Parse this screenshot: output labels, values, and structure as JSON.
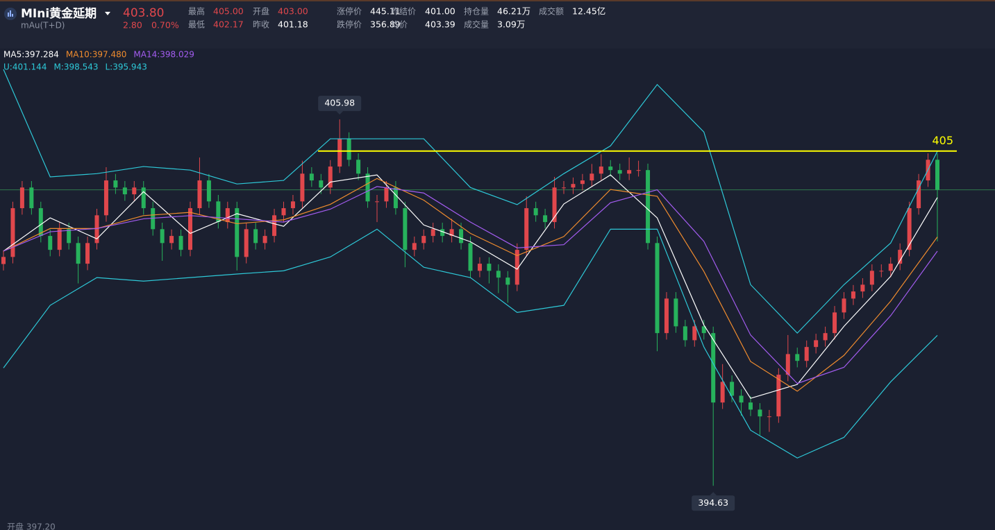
{
  "header": {
    "title": "MIni黄金延期",
    "code": "mAu(T+D)",
    "price": "403.80",
    "change": "2.80",
    "change_pct": "0.70%",
    "stats_row1": [
      {
        "label": "最高",
        "value": "405.00"
      },
      {
        "label": "开盘",
        "value": "403.00"
      },
      {
        "label": "涨停价",
        "value": "445.11"
      },
      {
        "label": "昨结价",
        "value": "401.00"
      },
      {
        "label": "持仓量",
        "value": "46.21万"
      },
      {
        "label": "成交额",
        "value": "12.45亿"
      }
    ],
    "stats_row2": [
      {
        "label": "最低",
        "value": "402.17"
      },
      {
        "label": "昨收",
        "value": "401.18"
      },
      {
        "label": "跌停价",
        "value": "356.89"
      },
      {
        "label": "均价",
        "value": "403.39"
      },
      {
        "label": "成交量",
        "value": "3.09万"
      }
    ]
  },
  "chart_data": {
    "type": "candlestick",
    "up_color": "#e0474c",
    "down_color": "#27b25c",
    "ylim": [
      393.26,
      408.39
    ],
    "legend_rows": [
      [
        {
          "text": "MA5:397.284",
          "color": "#ffffff"
        },
        {
          "text": "MA10:397.480",
          "color": "#f08c2e"
        },
        {
          "text": "MA14:398.029",
          "color": "#a35cf0"
        }
      ],
      [
        {
          "text": "U:401.144",
          "color": "#2ec9d8"
        },
        {
          "text": "M:398.543",
          "color": "#2ec9d8"
        },
        {
          "text": "L:395.943",
          "color": "#2ec9d8"
        }
      ]
    ],
    "open": [
      401.5,
      401.72,
      403.23,
      403.87,
      403.23,
      402.37,
      401.94,
      402.58,
      402.15,
      401.51,
      402.15,
      403.01,
      404.09,
      403.87,
      403.66,
      403.87,
      403.23,
      402.58,
      402.15,
      402.37,
      401.94,
      403.23,
      404.09,
      403.44,
      402.8,
      403.23,
      401.72,
      402.58,
      402.15,
      402.37,
      403.01,
      403.23,
      403.44,
      404.3,
      404.09,
      403.87,
      404.52,
      405.38,
      404.73,
      404.3,
      403.44,
      403.44,
      403.87,
      403.23,
      401.94,
      402.15,
      402.37,
      402.58,
      402.37,
      402.58,
      402.15,
      401.29,
      401.51,
      401.29,
      401.08,
      400.86,
      401.94,
      403.23,
      403.01,
      402.8,
      403.87,
      403.87,
      403.98,
      404.09,
      404.3,
      404.52,
      404.41,
      404.3,
      404.41,
      404.41,
      402.15,
      399.36,
      400.43,
      399.57,
      399.14,
      399.57,
      399.36,
      397.21,
      397.85,
      397.42,
      397.21,
      396.99,
      396.78,
      396.78,
      398.07,
      398.71,
      398.5,
      398.93,
      399.14,
      399.36,
      400.0,
      400.43,
      400.65,
      400.86,
      401.29,
      401.29,
      401.51,
      401.94,
      403.23,
      404.09,
      404.73
    ],
    "high": [
      401.92,
      403.43,
      404.07,
      404.07,
      403.43,
      402.57,
      402.78,
      402.78,
      402.35,
      402.35,
      403.21,
      404.5,
      404.29,
      404.07,
      404.07,
      404.07,
      403.43,
      402.78,
      402.57,
      402.57,
      403.43,
      404.8,
      404.29,
      403.64,
      403.43,
      403.43,
      402.78,
      402.78,
      402.57,
      403.21,
      403.43,
      403.64,
      404.7,
      404.5,
      404.29,
      404.72,
      405.98,
      405.58,
      404.93,
      404.5,
      403.64,
      404.07,
      404.07,
      403.43,
      402.35,
      402.57,
      402.78,
      402.78,
      402.9,
      402.78,
      402.35,
      401.71,
      401.71,
      401.49,
      401.28,
      402.14,
      403.6,
      403.43,
      403.21,
      404.2,
      404.07,
      404.18,
      404.29,
      404.6,
      404.9,
      404.72,
      404.61,
      404.8,
      404.7,
      404.61,
      402.35,
      400.63,
      400.63,
      399.77,
      399.77,
      399.77,
      399.56,
      398.4,
      398.05,
      397.62,
      397.41,
      397.19,
      396.98,
      398.27,
      399.3,
      398.91,
      399.13,
      399.34,
      399.56,
      400.2,
      400.63,
      400.85,
      401.06,
      401.49,
      401.49,
      401.71,
      402.14,
      403.43,
      404.29,
      404.93,
      404.93
    ],
    "low": [
      401.3,
      401.52,
      403.03,
      403.03,
      402.17,
      401.74,
      401.74,
      401.95,
      400.9,
      401.31,
      401.95,
      402.81,
      403.67,
      403.46,
      403.46,
      403.03,
      402.38,
      401.6,
      401.95,
      401.74,
      401.74,
      403.03,
      403.24,
      402.6,
      402.6,
      401.3,
      401.52,
      401.95,
      401.95,
      402.17,
      402.81,
      403.03,
      403.24,
      403.89,
      403.67,
      403.67,
      404.32,
      404.53,
      404.1,
      403.24,
      402.8,
      403.24,
      403.03,
      401.4,
      401.74,
      401.95,
      402.17,
      402.17,
      402.17,
      401.95,
      401.09,
      401.09,
      400.9,
      400.6,
      400.3,
      400.66,
      401.74,
      402.81,
      402.6,
      402.6,
      403.67,
      403.67,
      403.78,
      403.89,
      404.1,
      404.21,
      404.1,
      404.1,
      404.21,
      401.95,
      398.8,
      399.16,
      399.37,
      398.94,
      398.94,
      399.16,
      394.63,
      397.01,
      397.22,
      396.8,
      396.79,
      396.2,
      396.3,
      396.58,
      397.87,
      398.3,
      398.3,
      398.73,
      398.94,
      399.16,
      399.8,
      400.23,
      400.45,
      400.66,
      401.09,
      401.09,
      401.31,
      401.74,
      403.03,
      403.89,
      402.2
    ],
    "close": [
      401.72,
      403.23,
      403.87,
      403.23,
      402.37,
      401.94,
      402.58,
      402.15,
      401.51,
      402.15,
      403.01,
      404.09,
      403.87,
      403.66,
      403.87,
      403.23,
      402.58,
      402.15,
      402.37,
      401.94,
      403.23,
      404.09,
      403.44,
      402.8,
      403.23,
      401.72,
      402.58,
      402.15,
      402.37,
      403.01,
      403.23,
      403.44,
      404.3,
      404.09,
      403.87,
      404.52,
      405.38,
      404.73,
      404.3,
      403.44,
      403.44,
      403.87,
      403.23,
      401.94,
      402.15,
      402.37,
      402.58,
      402.37,
      402.58,
      402.15,
      401.29,
      401.51,
      401.29,
      401.08,
      400.86,
      401.94,
      403.23,
      403.01,
      402.8,
      403.87,
      403.87,
      403.98,
      404.09,
      404.3,
      404.52,
      404.41,
      404.3,
      404.41,
      404.41,
      402.15,
      399.36,
      400.43,
      399.57,
      399.14,
      399.57,
      399.36,
      397.21,
      397.85,
      397.42,
      397.21,
      396.99,
      396.78,
      396.78,
      398.07,
      398.71,
      398.5,
      398.93,
      399.14,
      399.36,
      400.0,
      400.43,
      400.65,
      400.86,
      401.29,
      401.29,
      401.51,
      401.94,
      403.23,
      404.09,
      404.73,
      403.8
    ],
    "lines": [
      {
        "name": "MA5",
        "color": "#ffffff",
        "x": [
          0,
          5,
          10,
          15,
          20,
          25,
          30,
          35,
          40,
          45,
          50,
          55,
          60,
          65,
          70,
          75,
          80,
          85,
          90,
          95,
          100
        ],
        "values": [
          401.9,
          402.93,
          402.28,
          403.74,
          402.45,
          403.06,
          402.67,
          404.04,
          404.26,
          402.71,
          402.19,
          401.34,
          403.36,
          404.26,
          402.93,
          399.61,
          397.34,
          397.77,
          399.57,
          401.12,
          403.56
        ]
      },
      {
        "name": "MA10",
        "color": "#f08c2e",
        "x": [
          0,
          5,
          10,
          15,
          20,
          25,
          30,
          35,
          40,
          45,
          50,
          55,
          60,
          65,
          70,
          75,
          80,
          85,
          90,
          95,
          100
        ],
        "values": [
          401.9,
          402.6,
          402.6,
          403.0,
          403.1,
          402.75,
          402.87,
          403.35,
          404.15,
          403.48,
          402.45,
          401.76,
          402.35,
          403.81,
          403.6,
          401.27,
          398.48,
          397.56,
          398.67,
          400.35,
          402.34
        ]
      },
      {
        "name": "MA14",
        "color": "#a35cf0",
        "x": [
          0,
          5,
          10,
          15,
          20,
          25,
          30,
          35,
          40,
          45,
          50,
          55,
          60,
          65,
          70,
          75,
          80,
          85,
          90,
          95,
          100
        ],
        "values": [
          401.9,
          402.5,
          402.6,
          402.9,
          403.0,
          402.9,
          402.8,
          403.2,
          403.9,
          403.7,
          402.8,
          402.0,
          402.1,
          403.4,
          403.8,
          402.2,
          399.3,
          397.8,
          398.3,
          399.9,
          401.9
        ]
      },
      {
        "name": "U",
        "color": "#2ec9d8",
        "x": [
          0,
          5,
          10,
          15,
          20,
          25,
          30,
          35,
          40,
          45,
          50,
          55,
          60,
          65,
          70,
          75,
          80,
          85,
          90,
          95,
          100
        ],
        "values": [
          407.53,
          404.2,
          404.3,
          404.52,
          404.41,
          403.98,
          404.09,
          405.38,
          405.38,
          405.38,
          403.87,
          403.34,
          404.3,
          405.16,
          407.06,
          405.59,
          400.86,
          399.36,
          400.86,
          402.15,
          404.99
        ]
      },
      {
        "name": "L",
        "color": "#2ec9d8",
        "x": [
          0,
          5,
          10,
          15,
          20,
          25,
          30,
          35,
          40,
          45,
          50,
          55,
          60,
          65,
          70,
          75,
          80,
          85,
          90,
          95,
          100
        ],
        "values": [
          398.28,
          400.22,
          401.08,
          400.97,
          401.08,
          401.19,
          401.29,
          401.72,
          402.58,
          401.4,
          401.08,
          400.0,
          400.22,
          402.58,
          402.58,
          398.93,
          396.35,
          395.49,
          396.13,
          397.85,
          399.29
        ]
      }
    ],
    "level_line": {
      "value": 405,
      "color": "#ffff00"
    },
    "price_line": {
      "value": 403.8,
      "color": "#2f7a4c"
    },
    "high_label": 405.98,
    "low_label": 394.63,
    "footer": "开盘 397.20"
  }
}
